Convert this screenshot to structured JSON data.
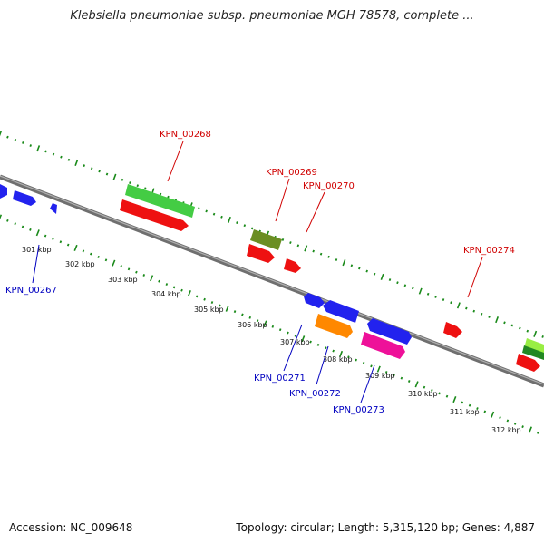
{
  "title": "Klebsiella pneumoniae subsp. pneumoniae MGH 78578, complete ...",
  "footer": {
    "accession": "Accession: NC_009648",
    "topology": "Topology: circular; Length: 5,315,120 bp; Genes: 4,887"
  },
  "colors": {
    "backbone": "#888888",
    "tick": "#1a8a1a",
    "label_red": "#d00000",
    "label_blue": "#0000c0"
  },
  "kbp_labels": [
    "301 kbp",
    "302 kbp",
    "303 kbp",
    "304 kbp",
    "305 kbp",
    "306 kbp",
    "307 kbp",
    "308 kbp",
    "309 kbp",
    "310 kbp",
    "311 kbp",
    "312 kbp"
  ],
  "gene_labels": {
    "upper": [
      "KPN_00268",
      "KPN_00269",
      "KPN_00270",
      "KPN_00274"
    ],
    "lower": [
      "KPN_00267",
      "KPN_00271",
      "KPN_00272",
      "KPN_00273"
    ]
  },
  "genes": [
    {
      "color": "#2222ee"
    },
    {
      "color": "#2222ee"
    },
    {
      "color": "#2222ee"
    },
    {
      "color": "#44cc44"
    },
    {
      "color": "#ee1111"
    },
    {
      "color": "#6b8e23"
    },
    {
      "color": "#ee1111"
    },
    {
      "color": "#ee1111"
    },
    {
      "color": "#2222ee"
    },
    {
      "color": "#2222ee"
    },
    {
      "color": "#ff8800"
    },
    {
      "color": "#2222ee"
    },
    {
      "color": "#ee1199"
    },
    {
      "color": "#ee1111"
    },
    {
      "color": "#99ee44"
    },
    {
      "color": "#228822"
    },
    {
      "color": "#ee1111"
    }
  ]
}
